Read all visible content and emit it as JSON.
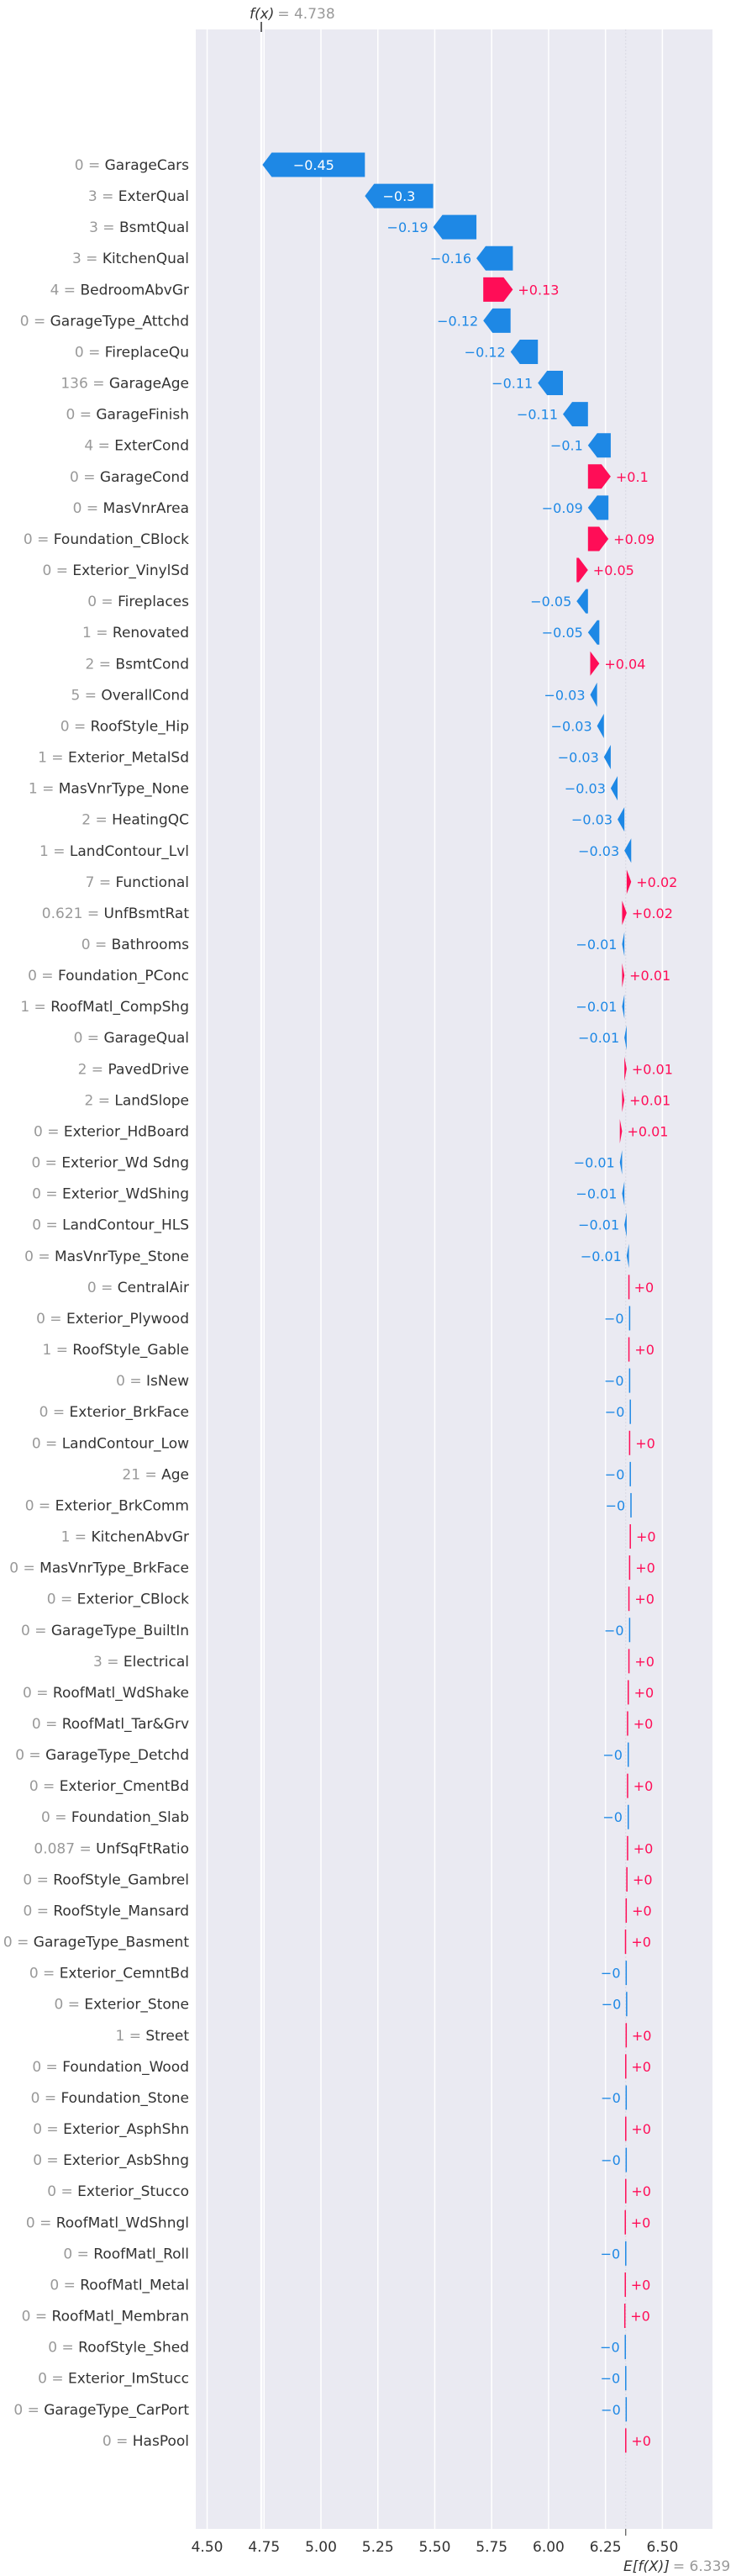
{
  "chart_data": {
    "type": "waterfall",
    "fx_label": "f(x)",
    "fx_value": "= 4.738",
    "fx": 4.738,
    "expected_label": "E[f(X)]",
    "expected_value": "= 6.339",
    "expected": 6.339,
    "xlim": [
      4.45,
      6.72
    ],
    "xticks": [
      "4.50",
      "4.75",
      "5.00",
      "5.25",
      "5.50",
      "5.75",
      "6.00",
      "6.25",
      "6.50"
    ],
    "grid": true,
    "colors": {
      "positive": "#FF0D57",
      "negative": "#1E88E5",
      "background": "#EAEAF2",
      "grid": "#FFFFFF"
    },
    "features": [
      {
        "value": "0",
        "name": "GarageCars",
        "contribution": -0.45,
        "label": "−0.45"
      },
      {
        "value": "3",
        "name": "ExterQual",
        "contribution": -0.3,
        "label": "−0.3"
      },
      {
        "value": "3",
        "name": "BsmtQual",
        "contribution": -0.19,
        "label": "−0.19"
      },
      {
        "value": "3",
        "name": "KitchenQual",
        "contribution": -0.16,
        "label": "−0.16"
      },
      {
        "value": "4",
        "name": "BedroomAbvGr",
        "contribution": 0.13,
        "label": "+0.13"
      },
      {
        "value": "0",
        "name": "GarageType_Attchd",
        "contribution": -0.12,
        "label": "−0.12"
      },
      {
        "value": "0",
        "name": "FireplaceQu",
        "contribution": -0.12,
        "label": "−0.12"
      },
      {
        "value": "136",
        "name": "GarageAge",
        "contribution": -0.11,
        "label": "−0.11"
      },
      {
        "value": "0",
        "name": "GarageFinish",
        "contribution": -0.11,
        "label": "−0.11"
      },
      {
        "value": "4",
        "name": "ExterCond",
        "contribution": -0.1,
        "label": "−0.1"
      },
      {
        "value": "0",
        "name": "GarageCond",
        "contribution": 0.1,
        "label": "+0.1"
      },
      {
        "value": "0",
        "name": "MasVnrArea",
        "contribution": -0.09,
        "label": "−0.09"
      },
      {
        "value": "0",
        "name": "Foundation_CBlock",
        "contribution": 0.09,
        "label": "+0.09"
      },
      {
        "value": "0",
        "name": "Exterior_VinylSd",
        "contribution": 0.05,
        "label": "+0.05"
      },
      {
        "value": "0",
        "name": "Fireplaces",
        "contribution": -0.05,
        "label": "−0.05"
      },
      {
        "value": "1",
        "name": "Renovated",
        "contribution": -0.05,
        "label": "−0.05"
      },
      {
        "value": "2",
        "name": "BsmtCond",
        "contribution": 0.04,
        "label": "+0.04"
      },
      {
        "value": "5",
        "name": "OverallCond",
        "contribution": -0.03,
        "label": "−0.03"
      },
      {
        "value": "0",
        "name": "RoofStyle_Hip",
        "contribution": -0.03,
        "label": "−0.03"
      },
      {
        "value": "1",
        "name": "Exterior_MetalSd",
        "contribution": -0.03,
        "label": "−0.03"
      },
      {
        "value": "1",
        "name": "MasVnrType_None",
        "contribution": -0.03,
        "label": "−0.03"
      },
      {
        "value": "2",
        "name": "HeatingQC",
        "contribution": -0.03,
        "label": "−0.03"
      },
      {
        "value": "1",
        "name": "LandContour_Lvl",
        "contribution": -0.03,
        "label": "−0.03"
      },
      {
        "value": "7",
        "name": "Functional",
        "contribution": 0.02,
        "label": "+0.02"
      },
      {
        "value": "0.621",
        "name": "UnfBsmtRat",
        "contribution": 0.02,
        "label": "+0.02"
      },
      {
        "value": "0",
        "name": "Bathrooms",
        "contribution": -0.01,
        "label": "−0.01"
      },
      {
        "value": "0",
        "name": "Foundation_PConc",
        "contribution": 0.01,
        "label": "+0.01"
      },
      {
        "value": "1",
        "name": "RoofMatl_CompShg",
        "contribution": -0.01,
        "label": "−0.01"
      },
      {
        "value": "0",
        "name": "GarageQual",
        "contribution": -0.01,
        "label": "−0.01"
      },
      {
        "value": "2",
        "name": "PavedDrive",
        "contribution": 0.01,
        "label": "+0.01"
      },
      {
        "value": "2",
        "name": "LandSlope",
        "contribution": 0.01,
        "label": "+0.01"
      },
      {
        "value": "0",
        "name": "Exterior_HdBoard",
        "contribution": 0.01,
        "label": "+0.01"
      },
      {
        "value": "0",
        "name": "Exterior_Wd Sdng",
        "contribution": -0.01,
        "label": "−0.01"
      },
      {
        "value": "0",
        "name": "Exterior_WdShing",
        "contribution": -0.01,
        "label": "−0.01"
      },
      {
        "value": "0",
        "name": "LandContour_HLS",
        "contribution": -0.01,
        "label": "−0.01"
      },
      {
        "value": "0",
        "name": "MasVnrType_Stone",
        "contribution": -0.01,
        "label": "−0.01"
      },
      {
        "value": "0",
        "name": "CentralAir",
        "contribution": 0.0,
        "label": "+0"
      },
      {
        "value": "0",
        "name": "Exterior_Plywood",
        "contribution": -0.003,
        "label": "−0"
      },
      {
        "value": "1",
        "name": "RoofStyle_Gable",
        "contribution": 0.003,
        "label": "+0"
      },
      {
        "value": "0",
        "name": "IsNew",
        "contribution": -0.003,
        "label": "−0"
      },
      {
        "value": "0",
        "name": "Exterior_BrkFace",
        "contribution": -0.003,
        "label": "−0"
      },
      {
        "value": "0",
        "name": "LandContour_Low",
        "contribution": 0.003,
        "label": "+0"
      },
      {
        "value": "21",
        "name": "Age",
        "contribution": -0.003,
        "label": "−0"
      },
      {
        "value": "0",
        "name": "Exterior_BrkComm",
        "contribution": -0.003,
        "label": "−0"
      },
      {
        "value": "1",
        "name": "KitchenAbvGr",
        "contribution": 0.003,
        "label": "+0"
      },
      {
        "value": "0",
        "name": "MasVnrType_BrkFace",
        "contribution": 0.003,
        "label": "+0"
      },
      {
        "value": "0",
        "name": "Exterior_CBlock",
        "contribution": 0.003,
        "label": "+0"
      },
      {
        "value": "0",
        "name": "GarageType_BuiltIn",
        "contribution": -0.003,
        "label": "−0"
      },
      {
        "value": "3",
        "name": "Electrical",
        "contribution": 0.003,
        "label": "+0"
      },
      {
        "value": "0",
        "name": "RoofMatl_WdShake",
        "contribution": 0.003,
        "label": "+0"
      },
      {
        "value": "0",
        "name": "RoofMatl_Tar&Grv",
        "contribution": 0.003,
        "label": "+0"
      },
      {
        "value": "0",
        "name": "GarageType_Detchd",
        "contribution": -0.003,
        "label": "−0"
      },
      {
        "value": "0",
        "name": "Exterior_CmentBd",
        "contribution": 0.003,
        "label": "+0"
      },
      {
        "value": "0",
        "name": "Foundation_Slab",
        "contribution": -0.003,
        "label": "−0"
      },
      {
        "value": "0.087",
        "name": "UnfSqFtRatio",
        "contribution": 0.003,
        "label": "+0"
      },
      {
        "value": "0",
        "name": "RoofStyle_Gambrel",
        "contribution": 0.003,
        "label": "+0"
      },
      {
        "value": "0",
        "name": "RoofStyle_Mansard",
        "contribution": 0.003,
        "label": "+0"
      },
      {
        "value": "0",
        "name": "GarageType_Basment",
        "contribution": 0.003,
        "label": "+0"
      },
      {
        "value": "0",
        "name": "Exterior_CemntBd",
        "contribution": -0.003,
        "label": "−0"
      },
      {
        "value": "0",
        "name": "Exterior_Stone",
        "contribution": -0.002,
        "label": "−0"
      },
      {
        "value": "1",
        "name": "Street",
        "contribution": 0.002,
        "label": "+0"
      },
      {
        "value": "0",
        "name": "Foundation_Wood",
        "contribution": 0.002,
        "label": "+0"
      },
      {
        "value": "0",
        "name": "Foundation_Stone",
        "contribution": -0.002,
        "label": "−0"
      },
      {
        "value": "0",
        "name": "Exterior_AsphShn",
        "contribution": 0.002,
        "label": "+0"
      },
      {
        "value": "0",
        "name": "Exterior_AsbShng",
        "contribution": -0.002,
        "label": "−0"
      },
      {
        "value": "0",
        "name": "Exterior_Stucco",
        "contribution": 0.002,
        "label": "+0"
      },
      {
        "value": "0",
        "name": "RoofMatl_WdShngl",
        "contribution": 0.002,
        "label": "+0"
      },
      {
        "value": "0",
        "name": "RoofMatl_Roll",
        "contribution": -0.002,
        "label": "−0"
      },
      {
        "value": "0",
        "name": "RoofMatl_Metal",
        "contribution": 0.002,
        "label": "+0"
      },
      {
        "value": "0",
        "name": "RoofMatl_Membran",
        "contribution": 0.002,
        "label": "+0"
      },
      {
        "value": "0",
        "name": "RoofStyle_Shed",
        "contribution": -0.002,
        "label": "−0"
      },
      {
        "value": "0",
        "name": "Exterior_ImStucc",
        "contribution": -0.002,
        "label": "−0"
      },
      {
        "value": "0",
        "name": "GarageType_CarPort",
        "contribution": -0.002,
        "label": "−0"
      },
      {
        "value": "0",
        "name": "HasPool",
        "contribution": 0.002,
        "label": "+0"
      }
    ]
  }
}
